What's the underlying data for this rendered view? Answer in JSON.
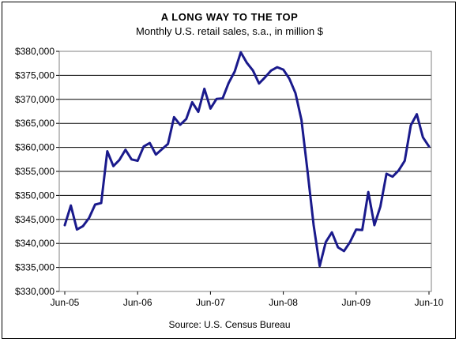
{
  "chart_data": {
    "type": "line",
    "title": "A LONG WAY TO THE TOP",
    "subtitle": "Monthly U.S. retail sales, s.a., in million $",
    "source": "Source: U.S. Census Bureau",
    "xlabel": "",
    "ylabel": "",
    "x_ticks": [
      "Jun-05",
      "Jun-06",
      "Jun-07",
      "Jun-08",
      "Jun-09",
      "Jun-10"
    ],
    "y_ticks": [
      "$330,000",
      "$335,000",
      "$340,000",
      "$345,000",
      "$350,000",
      "$355,000",
      "$360,000",
      "$365,000",
      "$370,000",
      "$375,000",
      "$380,000"
    ],
    "ylim": [
      330000,
      380000
    ],
    "grid": "horizontal",
    "legend": "none",
    "colors": {
      "line": "#1a1a8c",
      "grid": "#000000",
      "plot_border": "#808080"
    },
    "series": [
      {
        "values": [
          343800,
          347900,
          342900,
          343600,
          345300,
          348100,
          348400,
          359200,
          356100,
          357400,
          359500,
          357500,
          357200,
          360200,
          360900,
          358500,
          359600,
          360700,
          366300,
          364700,
          365900,
          369400,
          367400,
          372200,
          368100,
          370100,
          370200,
          373400,
          375800,
          379800,
          377600,
          376000,
          373300,
          374600,
          376000,
          376700,
          376200,
          374300,
          371300,
          365700,
          355000,
          343800,
          335300,
          340300,
          342300,
          339200,
          338400,
          340300,
          342900,
          342800,
          350700,
          343800,
          347700,
          354500,
          353900,
          355200,
          357200,
          364600,
          366900,
          362100,
          360200
        ]
      }
    ]
  }
}
